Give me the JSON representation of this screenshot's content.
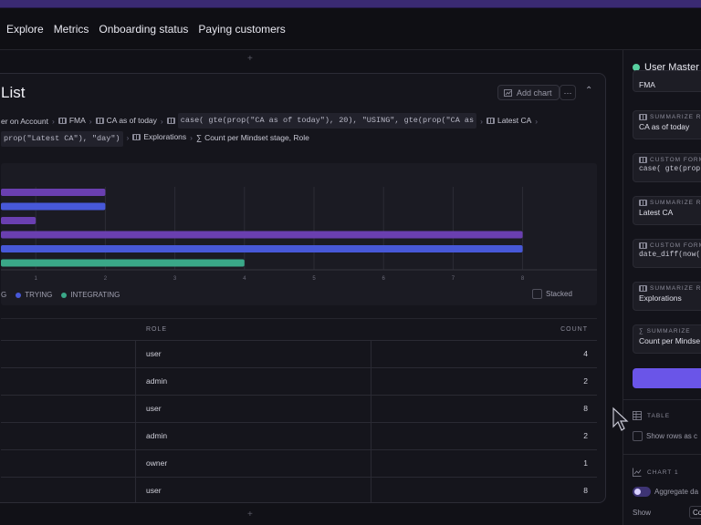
{
  "nav": {
    "items": [
      "Explore",
      "Metrics",
      "Onboarding status",
      "Paying customers"
    ]
  },
  "card": {
    "title": "List",
    "add_chart_label": "Add chart",
    "more_label": "···",
    "breadcrumbs": {
      "c0": "er on Account",
      "c1": "FMA",
      "c2": "CA as of today",
      "c3": "case( gte(prop(\"CA as of today\"), 20), \"USING\", gte(prop(\"CA as",
      "c4": "Latest CA",
      "c5": "prop(\"Latest CA\"), \"day\")",
      "c6": "Explorations",
      "c7": "Count per Mindset stage, Role"
    }
  },
  "chart_data": {
    "type": "bar",
    "orientation": "horizontal",
    "x_ticks": [
      "1",
      "2",
      "3",
      "4",
      "5",
      "6",
      "7",
      "8"
    ],
    "xlim": [
      0,
      8
    ],
    "grid": true,
    "legend_position": "bottom-left",
    "stacked_label": "Stacked",
    "stacked": false,
    "series": [
      {
        "name": "G",
        "color": "#3aa888",
        "values": [
          4
        ]
      },
      {
        "name": "TRYING",
        "color": "#4758d8",
        "values": [
          2,
          8
        ]
      },
      {
        "name": "INTEGRATING",
        "color": "#3aa888",
        "values": [
          4
        ]
      }
    ],
    "bars": [
      {
        "value": 2,
        "color": "#6a3fb0"
      },
      {
        "value": 2,
        "color": "#4758d8"
      },
      {
        "value": 1,
        "color": "#6a3fb0"
      },
      {
        "value": 8,
        "color": "#6a3fb0"
      },
      {
        "value": 8,
        "color": "#4758d8"
      },
      {
        "value": 4,
        "color": "#3aa888"
      }
    ]
  },
  "table": {
    "headers": {
      "role": "ROLE",
      "count": "COUNT"
    },
    "rows": [
      {
        "role": "user",
        "count": "4"
      },
      {
        "role": "admin",
        "count": "2"
      },
      {
        "role": "user",
        "count": "8"
      },
      {
        "role": "admin",
        "count": "2"
      },
      {
        "role": "owner",
        "count": "1"
      },
      {
        "role": "user",
        "count": "8"
      }
    ]
  },
  "sidebar": {
    "title": "User Master",
    "steps": [
      {
        "kind": "SUMMARIZE RE",
        "value": "FMA"
      },
      {
        "kind": "SUMMARIZE RE",
        "value": "CA as of today"
      },
      {
        "kind": "CUSTOM FORM",
        "value": "case( gte(prop"
      },
      {
        "kind": "SUMMARIZE RE",
        "value": "Latest CA"
      },
      {
        "kind": "CUSTOM FORM",
        "value": "date_diff(now("
      },
      {
        "kind": "SUMMARIZE RE",
        "value": "Explorations"
      },
      {
        "kind": "SUMMARIZE",
        "value": "Count per Mindse"
      }
    ],
    "table_section": "TABLE",
    "show_rows_label": "Show rows as c",
    "chart_section": "CHART 1",
    "aggregate_label": "Aggregate da",
    "show_label": "Show",
    "show_value": "Co"
  },
  "colors": {
    "accent": "#6a55e8",
    "purple_bar": "#6a3fb0",
    "blue_bar": "#4758d8",
    "green_bar": "#3aa888"
  }
}
